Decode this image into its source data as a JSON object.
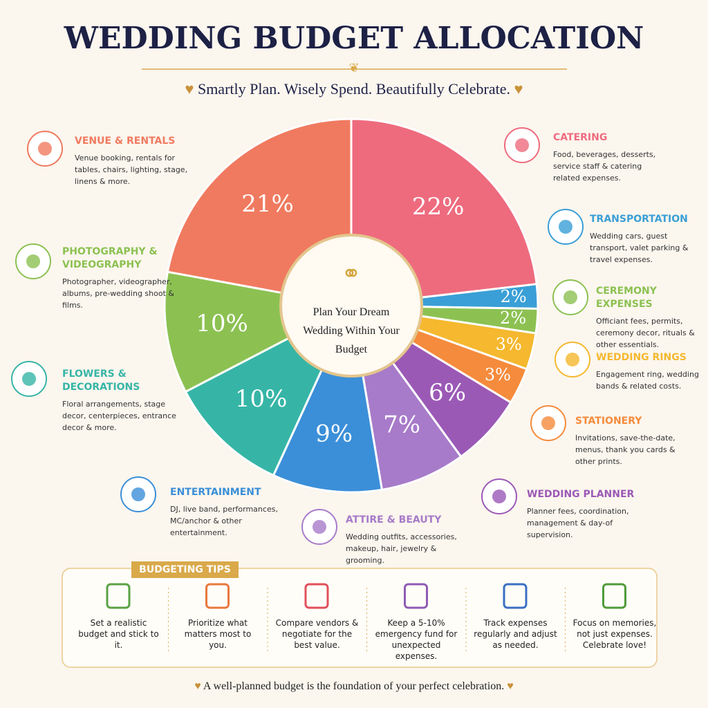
{
  "title": "WEDDING BUDGET ALLOCATION",
  "subtitle": "Smartly Plan. Wisely Spend. Beautifully Celebrate.",
  "chart_data": {
    "type": "pie",
    "center_text": "Plan Your Dream Wedding Within Your Budget",
    "categories": [
      "CATERING",
      "TRANSPORTATION",
      "CEREMONY EXPENSES",
      "WEDDING RINGS",
      "STATIONERY",
      "WEDDING PLANNER",
      "ATTIRE & BEAUTY",
      "ENTERTAINMENT",
      "FLOWERS & DECORATIONS",
      "PHOTOGRAPHY & VIDEOGRAPHY",
      "VENUE & RENTALS"
    ],
    "values": [
      22,
      2,
      2,
      3,
      3,
      6,
      7,
      9,
      10,
      10,
      21
    ],
    "value_labels": [
      "22%",
      "2%",
      "2%",
      "3%",
      "3%",
      "6%",
      "7%",
      "9%",
      "10%",
      "10%",
      "21%"
    ],
    "colors": [
      "#ee6b7e",
      "#3a9fd6",
      "#8cc152",
      "#f5b82e",
      "#f58b3c",
      "#9b59b6",
      "#a77bc9",
      "#3b8fd8",
      "#36b5a6",
      "#8cc152",
      "#f07a5f"
    ],
    "descriptions": [
      "Food, beverages, desserts, service staff & catering related expenses.",
      "Wedding cars, guest transport, valet parking & travel expenses.",
      "Officiant fees, permits, ceremony decor, rituals & other essentials.",
      "Engagement ring, wedding bands & related costs.",
      "Invitations, save-the-date, menus, thank you cards & other prints.",
      "Planner fees, coordination, management & day-of supervision.",
      "Wedding outfits, accessories, makeup, hair, jewelry & grooming.",
      "DJ, live band, performances, MC/anchor & other entertainment.",
      "Floral arrangements, stage decor, centerpieces, entrance decor & more.",
      "Photographer, videographer, albums, pre-wedding shoot & films.",
      "Venue booking, rentals for tables, chairs, lighting, stage, linens & more."
    ]
  },
  "tips": {
    "title": "BUDGETING TIPS",
    "items": [
      "Set a realistic budget and stick to it.",
      "Prioritize what matters most to you.",
      "Compare vendors & negotiate for the best value.",
      "Keep a 5-10% emergency fund for unexpected expenses.",
      "Track expenses regularly and adjust as needed.",
      "Focus on memories, not just expenses. Celebrate love!"
    ]
  },
  "footer": "A well-planned budget is the foundation of your perfect celebration."
}
